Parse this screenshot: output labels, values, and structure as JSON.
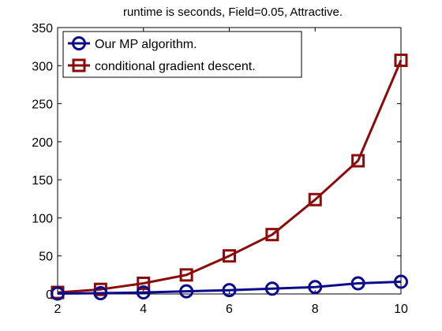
{
  "chart_data": {
    "type": "line",
    "title": "runtime is seconds, Field=0.05, Attractive.",
    "xlabel": "",
    "ylabel": "",
    "xlim": [
      2,
      10
    ],
    "ylim": [
      0,
      350
    ],
    "xticks": [
      2,
      4,
      6,
      8,
      10
    ],
    "yticks": [
      0,
      50,
      100,
      150,
      200,
      250,
      300,
      350
    ],
    "grid": false,
    "legend_position": "top-left",
    "x": [
      2,
      3,
      4,
      5,
      6,
      7,
      8,
      9,
      10
    ],
    "series": [
      {
        "name": "Our MP algorithm.",
        "color": "#0a0a8c",
        "marker": "circle",
        "values": [
          0.5,
          1,
          2,
          3.5,
          5,
          7,
          9,
          14,
          16
        ]
      },
      {
        "name": "conditional gradient descent.",
        "color": "#8b0a0a",
        "marker": "square",
        "values": [
          2,
          6,
          14,
          25,
          50,
          78,
          124,
          175,
          307
        ]
      }
    ]
  }
}
